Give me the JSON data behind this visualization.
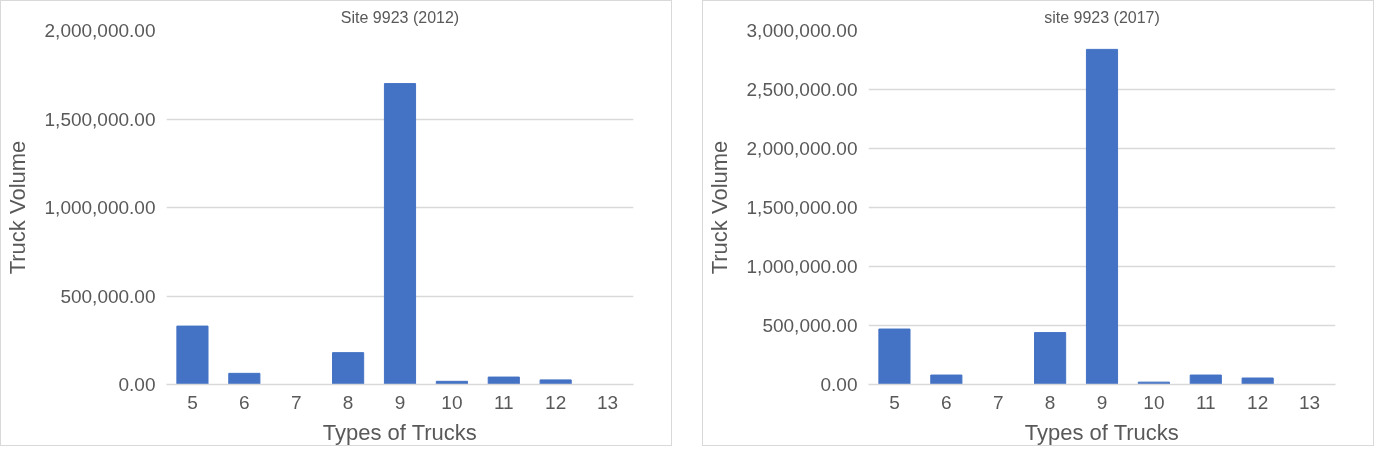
{
  "chart_data": [
    {
      "type": "bar",
      "title": "Site 9923 (2012)",
      "xlabel": "Types of Trucks",
      "ylabel": "Truck Volume",
      "categories": [
        "5",
        "6",
        "7",
        "8",
        "9",
        "10",
        "11",
        "12",
        "13"
      ],
      "values": [
        330000,
        63000,
        null,
        180000,
        1700000,
        18000,
        42000,
        26000,
        null
      ],
      "color": "#4472c4",
      "ylim": [
        0,
        2000000
      ],
      "yticks": [
        {
          "value": 0,
          "label": "0.00"
        },
        {
          "value": 500000,
          "label": "500,000.00"
        },
        {
          "value": 1000000,
          "label": "1,000,000.00"
        },
        {
          "value": 1500000,
          "label": "1,500,000.00"
        },
        {
          "value": 2000000,
          "label": "2,000,000.00"
        }
      ],
      "grid": "y"
    },
    {
      "type": "bar",
      "title": "site 9923 (2017)",
      "xlabel": "Types of Trucks",
      "ylabel": "Truck Volume",
      "categories": [
        "5",
        "6",
        "7",
        "8",
        "9",
        "10",
        "11",
        "12",
        "13"
      ],
      "values": [
        470000,
        80000,
        null,
        440000,
        2840000,
        20000,
        80000,
        55000,
        null
      ],
      "color": "#4472c4",
      "ylim": [
        0,
        3000000
      ],
      "yticks": [
        {
          "value": 0,
          "label": "0.00"
        },
        {
          "value": 500000,
          "label": "500,000.00"
        },
        {
          "value": 1000000,
          "label": "1,000,000.00"
        },
        {
          "value": 1500000,
          "label": "1,500,000.00"
        },
        {
          "value": 2000000,
          "label": "2,000,000.00"
        },
        {
          "value": 2500000,
          "label": "2,500,000.00"
        },
        {
          "value": 3000000,
          "label": "3,000,000.00"
        }
      ],
      "grid": "y"
    }
  ]
}
